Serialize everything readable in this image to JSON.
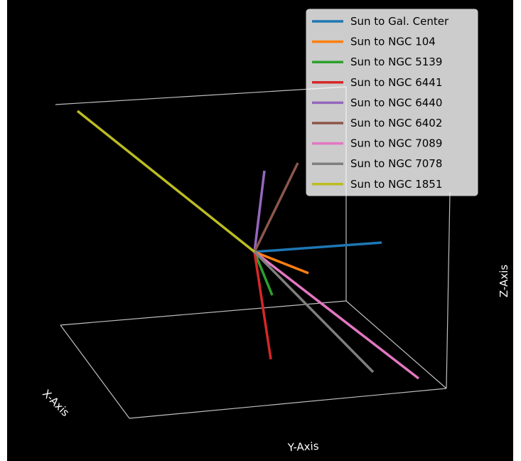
{
  "chart_data": {
    "type": "line",
    "projection": "3d",
    "background": "#000000",
    "pane_edge_color": "#bfbfbf",
    "grid": false,
    "legend_position": "top-right",
    "xlabel": "X-Axis",
    "ylabel": "Y-Axis",
    "zlabel": "Z-Axis",
    "origin": "Sun",
    "series": [
      {
        "name": "Sun to Gal. Center",
        "color": "#1f77b4"
      },
      {
        "name": "Sun to NGC 104",
        "color": "#ff7f0e"
      },
      {
        "name": "Sun to NGC 5139",
        "color": "#2ca02c"
      },
      {
        "name": "Sun to NGC 6441",
        "color": "#d62728"
      },
      {
        "name": "Sun to NGC 6440",
        "color": "#9467bd"
      },
      {
        "name": "Sun to NGC 6402",
        "color": "#8c564b"
      },
      {
        "name": "Sun to NGC 7089",
        "color": "#e377c2"
      },
      {
        "name": "Sun to NGC 7078",
        "color": "#7f7f7f"
      },
      {
        "name": "Sun to NGC 1851",
        "color": "#bcbd22"
      }
    ]
  }
}
